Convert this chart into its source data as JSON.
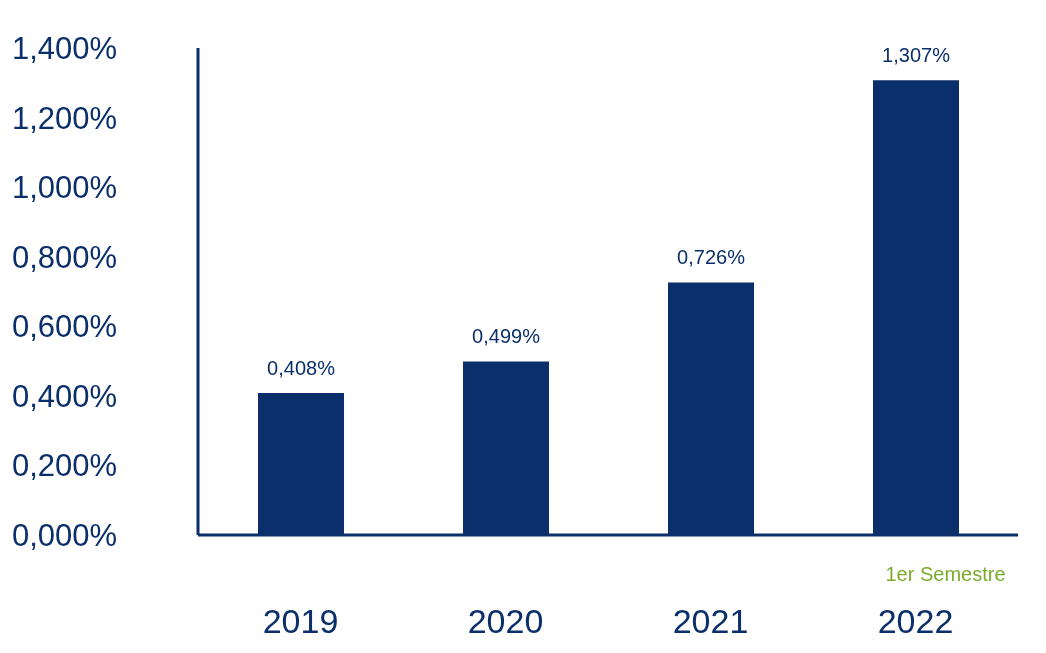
{
  "chart_data": {
    "type": "bar",
    "categories": [
      "2019",
      "2020",
      "2021",
      "2022"
    ],
    "values": [
      0.408,
      0.499,
      0.726,
      1.307
    ],
    "color": "#0b2f6b",
    "value_labels": [
      "0,408%",
      "0,499%",
      "0,726%",
      "1,307%"
    ],
    "ylim": [
      0,
      1.4
    ],
    "yticks": [
      {
        "value": 0,
        "label": "0,000%"
      },
      {
        "value": 0.2,
        "label": "0,200%"
      },
      {
        "value": 0.4,
        "label": "0,400%"
      },
      {
        "value": 0.6,
        "label": "0,600%"
      },
      {
        "value": 0.8,
        "label": "0,800%"
      },
      {
        "value": 1,
        "label": "1,000%"
      },
      {
        "value": 1.2,
        "label": "1,200%"
      },
      {
        "value": 1.4,
        "label": "1,400%"
      }
    ],
    "annotations": [
      "1er Semestre"
    ],
    "grid": false,
    "legend": false
  }
}
